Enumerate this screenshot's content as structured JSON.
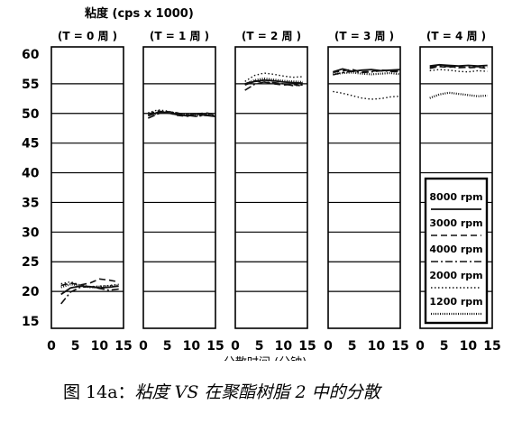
{
  "chart_data": {
    "type": "line",
    "ylabel": "粘度 (cps x 1000)",
    "xlabel": "分散时间 (分钟)",
    "ylim": [
      15,
      60
    ],
    "yticks": [
      "60",
      "55",
      "50",
      "45",
      "40",
      "35",
      "30",
      "25",
      "20",
      "15"
    ],
    "ytick_values": [
      60,
      55,
      50,
      45,
      40,
      35,
      30,
      25,
      20,
      15
    ],
    "xticks": [
      "0",
      "5",
      "10",
      "15"
    ],
    "xlim": [
      0,
      15
    ],
    "grid": "horizontal",
    "legend_position": "lower-right of last panel",
    "legend": [
      {
        "label": "8000 rpm",
        "style": "solid"
      },
      {
        "label": "3000 rpm",
        "style": "dashed"
      },
      {
        "label": "4000 rpm",
        "style": "dash-dot"
      },
      {
        "label": "2000 rpm",
        "style": "dotted"
      },
      {
        "label": "1200 rpm",
        "style": "dense-dotted"
      }
    ],
    "panels": [
      {
        "title": "(T =  0 周  )",
        "series": [
          {
            "name": "8000 rpm",
            "x": [
              2,
              4,
              6,
              8,
              10,
              12,
              14
            ],
            "y": [
              19.5,
              20.6,
              20.9,
              20.8,
              20.6,
              20.7,
              20.9
            ]
          },
          {
            "name": "3000 rpm",
            "x": [
              2,
              4,
              6,
              8,
              10,
              12,
              14
            ],
            "y": [
              21.0,
              21.4,
              21.1,
              21.4,
              22.1,
              21.9,
              21.6
            ]
          },
          {
            "name": "4000 rpm",
            "x": [
              2,
              4,
              6,
              8,
              10,
              12,
              14
            ],
            "y": [
              17.9,
              19.9,
              20.7,
              20.8,
              20.5,
              20.2,
              20.4
            ]
          },
          {
            "name": "2000 rpm",
            "x": [
              2,
              4,
              6,
              8,
              10,
              12,
              14
            ],
            "y": [
              21.3,
              21.6,
              21.1,
              20.8,
              20.9,
              21.0,
              21.2
            ]
          },
          {
            "name": "1200 rpm",
            "x": [
              2,
              4,
              6,
              8,
              10,
              12,
              14
            ],
            "y": [
              20.7,
              21.2,
              21.0,
              20.7,
              20.8,
              20.9,
              21.0
            ]
          }
        ]
      },
      {
        "title": "(T = 1 周  )",
        "series": [
          {
            "name": "8000 rpm",
            "x": [
              1,
              3,
              5,
              7,
              9,
              11,
              13,
              15
            ],
            "y": [
              49.6,
              50.2,
              50.1,
              49.8,
              49.6,
              49.9,
              49.7,
              49.5
            ]
          },
          {
            "name": "3000 rpm",
            "x": [
              1,
              3,
              5,
              7,
              9,
              11,
              13,
              15
            ],
            "y": [
              49.9,
              50.4,
              50.2,
              49.7,
              49.5,
              49.9,
              50.1,
              49.8
            ]
          },
          {
            "name": "4000 rpm",
            "x": [
              1,
              3,
              5,
              7,
              9,
              11,
              13,
              15
            ],
            "y": [
              49.2,
              49.9,
              50.3,
              50.1,
              49.7,
              49.5,
              49.7,
              49.6
            ]
          },
          {
            "name": "2000 rpm",
            "x": [
              1,
              3,
              5,
              7,
              9,
              11,
              13,
              15
            ],
            "y": [
              50.1,
              50.6,
              50.4,
              50.0,
              49.8,
              50.0,
              49.9,
              49.7
            ]
          },
          {
            "name": "1200 rpm",
            "x": [
              1,
              3,
              5,
              7,
              9,
              11,
              13,
              15
            ],
            "y": [
              49.7,
              50.0,
              50.3,
              50.0,
              49.8,
              49.6,
              49.8,
              49.6
            ]
          }
        ]
      },
      {
        "title": "(T = 2 周  )",
        "series": [
          {
            "name": "8000 rpm",
            "x": [
              2,
              4,
              6,
              8,
              10,
              12,
              14
            ],
            "y": [
              54.8,
              55.4,
              55.6,
              55.5,
              55.3,
              55.2,
              55.1
            ]
          },
          {
            "name": "3000 rpm",
            "x": [
              2,
              4,
              6,
              8,
              10,
              12,
              14
            ],
            "y": [
              55.0,
              55.5,
              55.3,
              55.0,
              54.8,
              54.9,
              54.6
            ]
          },
          {
            "name": "4000 rpm",
            "x": [
              2,
              4,
              6,
              8,
              10,
              12,
              14
            ],
            "y": [
              53.9,
              54.9,
              55.3,
              55.2,
              55.0,
              54.7,
              54.8
            ]
          },
          {
            "name": "2000 rpm",
            "x": [
              2,
              4,
              6,
              8,
              10,
              12,
              14
            ],
            "y": [
              55.4,
              56.4,
              56.8,
              56.6,
              56.3,
              56.1,
              56.2
            ]
          },
          {
            "name": "1200 rpm",
            "x": [
              2,
              4,
              6,
              8,
              10,
              12,
              14
            ],
            "y": [
              54.9,
              55.6,
              55.9,
              55.7,
              55.5,
              55.4,
              55.3
            ]
          }
        ]
      },
      {
        "title": "(T =  3 周  )",
        "series": [
          {
            "name": "8000 rpm",
            "x": [
              1,
              3,
              5,
              7,
              9,
              11,
              13,
              15
            ],
            "y": [
              57.0,
              57.5,
              57.1,
              57.3,
              57.4,
              57.2,
              57.3,
              57.4
            ]
          },
          {
            "name": "3000 rpm",
            "x": [
              1,
              3,
              5,
              7,
              9,
              11,
              13,
              15
            ],
            "y": [
              56.9,
              57.2,
              57.4,
              57.0,
              57.1,
              57.3,
              57.2,
              57.1
            ]
          },
          {
            "name": "4000 rpm",
            "x": [
              1,
              3,
              5,
              7,
              9,
              11,
              13,
              15
            ],
            "y": [
              56.5,
              56.9,
              57.1,
              56.9,
              57.0,
              57.2,
              57.1,
              57.0
            ]
          },
          {
            "name": "2000 rpm",
            "x": [
              1,
              3,
              5,
              7,
              9,
              11,
              13,
              15
            ],
            "y": [
              53.7,
              53.4,
              53.0,
              52.6,
              52.4,
              52.5,
              52.8,
              52.9
            ]
          },
          {
            "name": "1200 rpm",
            "x": [
              1,
              3,
              5,
              7,
              9,
              11,
              13,
              15
            ],
            "y": [
              56.6,
              56.8,
              56.9,
              56.7,
              56.6,
              56.7,
              56.8,
              56.6
            ]
          }
        ]
      },
      {
        "title": "(T =  4 周  )",
        "series": [
          {
            "name": "8000 rpm",
            "x": [
              2,
              4,
              6,
              8,
              10,
              12,
              14
            ],
            "y": [
              58.0,
              58.2,
              58.1,
              58.0,
              58.1,
              58.0,
              58.1
            ]
          },
          {
            "name": "3000 rpm",
            "x": [
              2,
              4,
              6,
              8,
              10,
              12,
              14
            ],
            "y": [
              57.6,
              57.9,
              57.8,
              57.9,
              57.7,
              57.8,
              57.6
            ]
          },
          {
            "name": "4000 rpm",
            "x": [
              2,
              4,
              6,
              8,
              10,
              12,
              14
            ],
            "y": [
              57.8,
              58.0,
              57.9,
              57.7,
              57.8,
              57.9,
              57.8
            ]
          },
          {
            "name": "2000 rpm",
            "x": [
              2,
              4,
              6,
              8,
              10,
              12,
              14
            ],
            "y": [
              57.2,
              57.4,
              57.3,
              57.1,
              57.0,
              57.2,
              57.1
            ]
          },
          {
            "name": "1200 rpm",
            "x": [
              2,
              4,
              6,
              8,
              10,
              12,
              14
            ],
            "y": [
              52.6,
              53.2,
              53.5,
              53.3,
              53.1,
              52.9,
              53.0
            ]
          }
        ]
      }
    ]
  },
  "caption": {
    "prefix": "图 14a：",
    "text_before": "粘度 ",
    "vs": "VS",
    "text_after": " 在聚酯树脂 ",
    "num": "2",
    "text_end": " 中的分散"
  }
}
